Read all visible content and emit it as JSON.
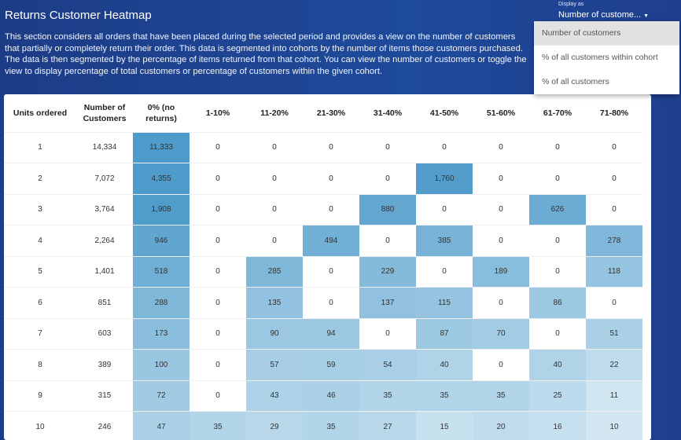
{
  "header": {
    "title": "Returns Customer Heatmap",
    "description": "This section considers all orders that have been placed during the selected period and provides a view on the number of customers that partially or completely return their order. This data is segmented into cohorts by the number of items those customers purchased. The data is then segmented by the percentage of items returned from that cohort. You can view the number of customers or toggle the view to display percentage of total customers or percentage of customers within the given cohort."
  },
  "display": {
    "label": "Display as",
    "selected": "Number of custome...",
    "caret_icon": "caret-down-icon",
    "options": [
      "Number of customers",
      "% of all customers within cohort",
      "% of all customers"
    ]
  },
  "table": {
    "columns": [
      "Units ordered",
      "Number of Customers",
      "0% (no returns)",
      "1-10%",
      "11-20%",
      "21-30%",
      "31-40%",
      "41-50%",
      "51-60%",
      "61-70%",
      "71-80%"
    ],
    "rows": [
      [
        "1",
        "14,334",
        "11,333",
        "0",
        "0",
        "0",
        "0",
        "0",
        "0",
        "0",
        "0"
      ],
      [
        "2",
        "7,072",
        "4,355",
        "0",
        "0",
        "0",
        "0",
        "1,760",
        "0",
        "0",
        "0"
      ],
      [
        "3",
        "3,764",
        "1,908",
        "0",
        "0",
        "0",
        "880",
        "0",
        "0",
        "626",
        "0"
      ],
      [
        "4",
        "2,264",
        "946",
        "0",
        "0",
        "494",
        "0",
        "385",
        "0",
        "0",
        "278"
      ],
      [
        "5",
        "1,401",
        "518",
        "0",
        "285",
        "0",
        "229",
        "0",
        "189",
        "0",
        "118"
      ],
      [
        "6",
        "851",
        "288",
        "0",
        "135",
        "0",
        "137",
        "115",
        "0",
        "86",
        "0"
      ],
      [
        "7",
        "603",
        "173",
        "0",
        "90",
        "94",
        "0",
        "87",
        "70",
        "0",
        "51"
      ],
      [
        "8",
        "389",
        "100",
        "0",
        "57",
        "59",
        "54",
        "40",
        "0",
        "40",
        "22"
      ],
      [
        "9",
        "315",
        "72",
        "0",
        "43",
        "46",
        "35",
        "35",
        "35",
        "25",
        "11"
      ],
      [
        "10",
        "246",
        "47",
        "35",
        "29",
        "35",
        "27",
        "15",
        "20",
        "16",
        "10"
      ]
    ]
  },
  "colors": {
    "heat_dark": "#4f9bcb",
    "heat_light": "#d2e7f2",
    "background": "#1e4592"
  }
}
